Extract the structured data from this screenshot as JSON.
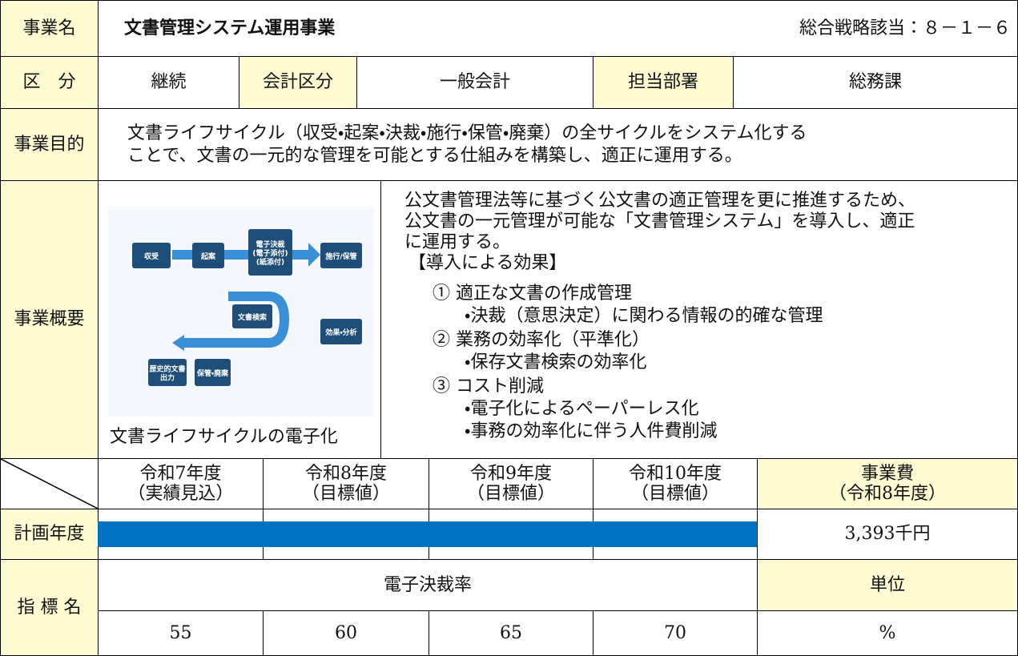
{
  "header": {
    "label": "事業名",
    "title": "文書管理システム運用事業",
    "strategy": "総合戦略該当：８－１－６"
  },
  "division": {
    "label": "区　分",
    "type": "継続",
    "account_label": "会計区分",
    "account": "一般会計",
    "dept_label": "担当部署",
    "dept": "総務課"
  },
  "purpose": {
    "label": "事業目的",
    "lines": [
      "文書ライフサイクル（収受・起案・決裁・施行・保管・廃棄）の全サイクルをシステム化する",
      "ことで、文書の一元的な管理を可能とする仕組みを構築し、適正に運用する。"
    ]
  },
  "overview": {
    "label": "事業概要",
    "figure": {
      "caption": "文書ライフサイクルの電子化",
      "labels": [
        "収受",
        "起案",
        "電子決裁",
        "(電子添付)",
        "(紙添付)",
        "施行/保管",
        "文書検索",
        "効果・分析",
        "歴史的文書",
        "出力",
        "保管・廃棄"
      ]
    },
    "lines": [
      "公文書管理法等に基づく公文書の適正管理を更に推進するため、",
      "公文書の一元管理が可能な「文書管理システム」を導入し、適正",
      "に運用する。",
      "【導入による効果】",
      "① 適正な文書の作成管理",
      "・決裁（意思決定）に関わる情報の的確な管理",
      "② 業務の効率化（平準化）",
      "・保存文書検索の効率化",
      "③ コスト削減",
      "・電子化によるペーパーレス化",
      "・事務の効率化に伴う人件費削減"
    ]
  },
  "plan": {
    "label": "計画年度",
    "years": [
      {
        "year": "令和7年度",
        "note": "（実績見込）"
      },
      {
        "year": "令和8年度",
        "note": "（目標値）"
      },
      {
        "year": "令和9年度",
        "note": "（目標値）"
      },
      {
        "year": "令和10年度",
        "note": "（目標値）"
      }
    ],
    "cost_header": {
      "title": "事業費",
      "note": "（令和8年度）"
    },
    "cost": "3,393千円"
  },
  "indicator": {
    "label": "指 標 名",
    "name": "電子決裁率",
    "unit_label": "単位",
    "values": [
      55,
      60,
      65,
      70
    ],
    "unit": "%"
  }
}
